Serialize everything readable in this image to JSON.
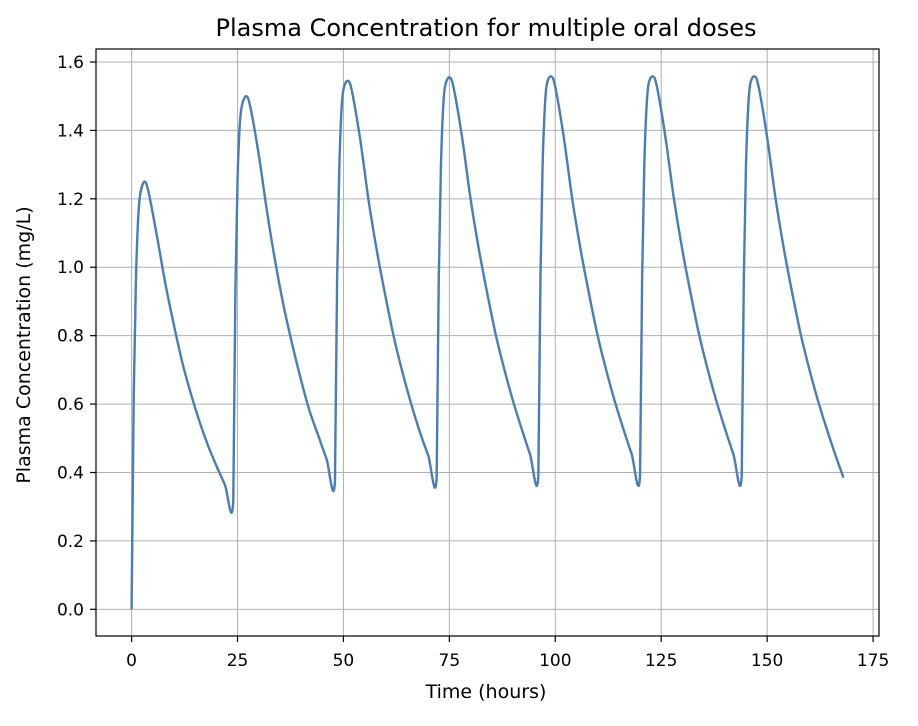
{
  "chart_data": {
    "type": "line",
    "title": "Plasma Concentration for multiple oral doses",
    "xlabel": "Time (hours)",
    "ylabel": "Plasma Concentration (mg/L)",
    "xlim": [
      -8.4,
      176.4
    ],
    "ylim": [
      -0.078,
      1.638
    ],
    "xticks": [
      0,
      25,
      50,
      75,
      100,
      125,
      150,
      175
    ],
    "xtick_labels": [
      "0",
      "25",
      "50",
      "75",
      "100",
      "125",
      "150",
      "175"
    ],
    "yticks": [
      0.0,
      0.2,
      0.4,
      0.6,
      0.8,
      1.0,
      1.2,
      1.4,
      1.6
    ],
    "ytick_labels": [
      "0.0",
      "0.2",
      "0.4",
      "0.6",
      "0.8",
      "1.0",
      "1.2",
      "1.4",
      "1.6"
    ],
    "grid": true,
    "colors": {
      "line": "#4a7db5",
      "grid": "#b0b0b0",
      "axes": "#000000"
    },
    "series": [
      {
        "x": [
          0,
          0.5,
          1,
          1.5,
          2,
          3,
          4,
          6,
          8,
          10,
          12,
          14,
          16,
          18,
          20,
          22,
          24,
          24.5,
          25,
          25.5,
          26,
          27,
          28,
          30,
          32,
          34,
          36,
          38,
          40,
          42,
          44,
          46,
          48,
          48.5,
          49,
          49.5,
          50,
          51,
          52,
          54,
          56,
          58,
          60,
          62,
          64,
          66,
          68,
          70,
          72,
          72.5,
          73,
          73.5,
          74,
          75,
          76,
          78,
          80,
          82,
          84,
          86,
          88,
          90,
          92,
          94,
          96,
          96.5,
          97,
          97.5,
          98,
          99,
          100,
          102,
          104,
          106,
          108,
          110,
          112,
          114,
          116,
          118,
          120,
          120.5,
          121,
          121.5,
          122,
          123,
          124,
          126,
          128,
          130,
          132,
          134,
          136,
          138,
          140,
          142,
          144,
          144.5,
          145,
          145.5,
          146,
          147,
          148,
          150,
          152,
          154,
          156,
          158,
          160,
          162,
          164,
          166,
          168
        ],
        "y": [
          0.0,
          0.62,
          0.95,
          1.13,
          1.21,
          1.25,
          1.22,
          1.09,
          0.95,
          0.83,
          0.72,
          0.63,
          0.55,
          0.48,
          0.42,
          0.365,
          0.317,
          0.93,
          1.25,
          1.41,
          1.47,
          1.5,
          1.47,
          1.33,
          1.16,
          1.01,
          0.88,
          0.77,
          0.67,
          0.58,
          0.51,
          0.44,
          0.375,
          0.96,
          1.28,
          1.45,
          1.52,
          1.545,
          1.515,
          1.37,
          1.19,
          1.04,
          0.91,
          0.79,
          0.69,
          0.6,
          0.52,
          0.45,
          0.385,
          0.97,
          1.29,
          1.46,
          1.53,
          1.555,
          1.525,
          1.38,
          1.2,
          1.05,
          0.92,
          0.8,
          0.7,
          0.61,
          0.53,
          0.455,
          0.39,
          0.97,
          1.295,
          1.46,
          1.535,
          1.558,
          1.527,
          1.38,
          1.2,
          1.05,
          0.92,
          0.8,
          0.7,
          0.61,
          0.53,
          0.455,
          0.39,
          0.97,
          1.295,
          1.46,
          1.535,
          1.558,
          1.527,
          1.38,
          1.2,
          1.05,
          0.92,
          0.8,
          0.7,
          0.61,
          0.53,
          0.455,
          0.39,
          0.97,
          1.295,
          1.46,
          1.535,
          1.558,
          1.527,
          1.38,
          1.2,
          1.05,
          0.92,
          0.8,
          0.7,
          0.61,
          0.53,
          0.455,
          0.385
        ]
      }
    ]
  }
}
